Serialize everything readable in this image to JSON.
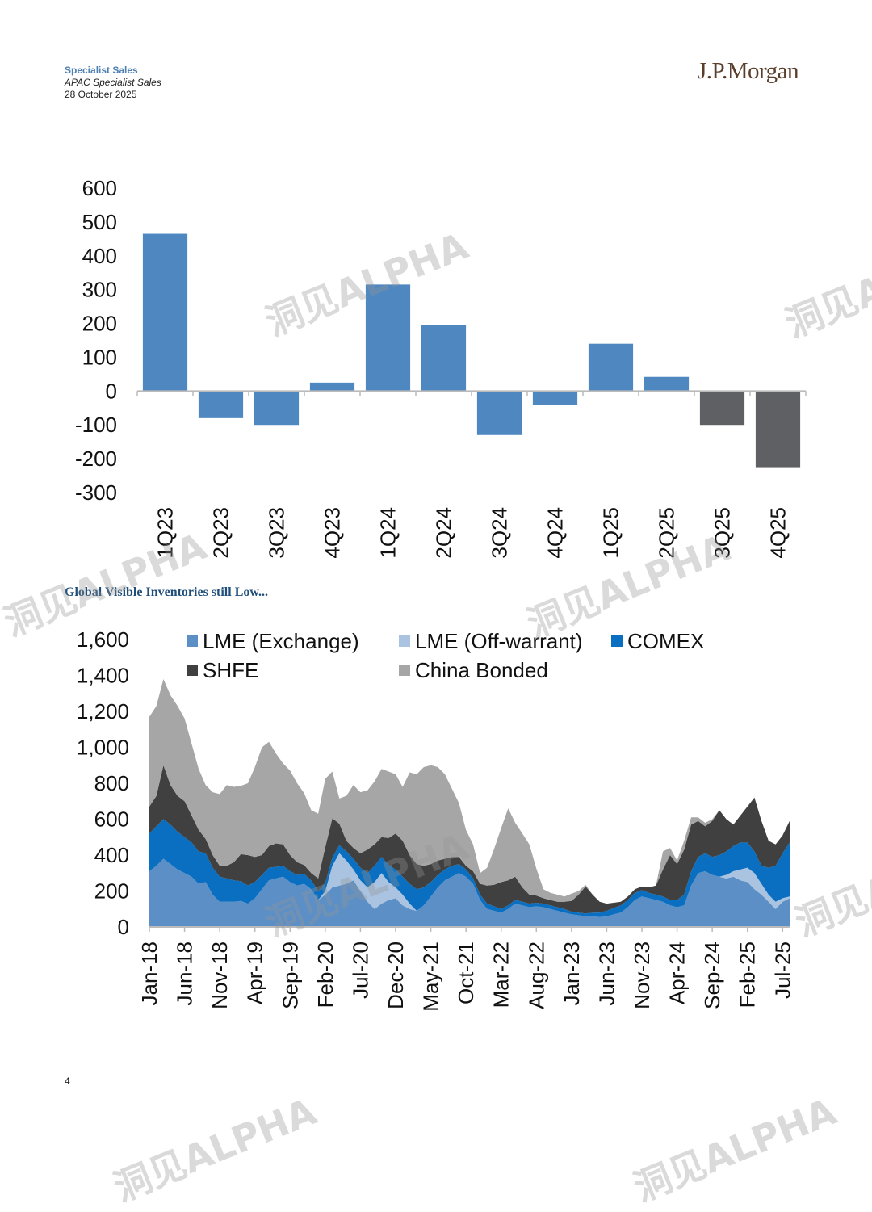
{
  "header": {
    "department": "Specialist Sales",
    "team": "APAC Specialist Sales",
    "date": "28 October 2025",
    "brand": "J.P.Morgan"
  },
  "section_title": "Global Visible Inventories still Low...",
  "page_number": "4",
  "watermark": "洞见ALPHA",
  "colors": {
    "bar_positive": "#4f88c1",
    "bar_forecast": "#5f6064",
    "lme_exchange": "#5b8fc6",
    "lme_offwarrant": "#a9c3e0",
    "comex": "#0a6fc0",
    "shfe": "#404040",
    "china_bonded": "#a6a6a6"
  },
  "chart_data": [
    {
      "type": "bar",
      "title": "",
      "xlabel": "",
      "ylabel": "",
      "categories": [
        "1Q23",
        "2Q23",
        "3Q23",
        "4Q23",
        "1Q24",
        "2Q24",
        "3Q24",
        "4Q24",
        "1Q25",
        "2Q25",
        "3Q25",
        "4Q25"
      ],
      "values": [
        465,
        -80,
        -100,
        25,
        315,
        195,
        -130,
        -40,
        140,
        42,
        -100,
        -225
      ],
      "forecast_from_index": 10,
      "ylim": [
        -300,
        600
      ],
      "yticks": [
        "600",
        "500",
        "400",
        "300",
        "200",
        "100",
        "0",
        "-100",
        "-200",
        "-300"
      ],
      "ytick_values": [
        600,
        500,
        400,
        300,
        200,
        100,
        0,
        -100,
        -200,
        -300
      ]
    },
    {
      "type": "area",
      "stacked": true,
      "title": "",
      "xlabel": "",
      "ylabel": "",
      "ylim": [
        0,
        1600
      ],
      "yticks": [
        "1,600",
        "1,400",
        "1,200",
        "1,000",
        "800",
        "600",
        "400",
        "200",
        "0"
      ],
      "ytick_values": [
        1600,
        1400,
        1200,
        1000,
        800,
        600,
        400,
        200,
        0
      ],
      "x_tick_labels": [
        "Jan-18",
        "Jun-18",
        "Nov-18",
        "Apr-19",
        "Sep-19",
        "Feb-20",
        "Jul-20",
        "Dec-20",
        "May-21",
        "Oct-21",
        "Mar-22",
        "Aug-22",
        "Jan-23",
        "Jun-23",
        "Nov-23",
        "Apr-24",
        "Sep-24",
        "Feb-25",
        "Jul-25"
      ],
      "x_tick_index": [
        0,
        5,
        10,
        15,
        20,
        25,
        30,
        35,
        40,
        45,
        50,
        55,
        60,
        65,
        70,
        75,
        80,
        85,
        90
      ],
      "legend_position": "top",
      "series": [
        {
          "name": "LME (Exchange)",
          "values": [
            310,
            340,
            380,
            350,
            320,
            300,
            280,
            240,
            250,
            180,
            140,
            140,
            140,
            145,
            130,
            160,
            210,
            260,
            270,
            280,
            250,
            230,
            240,
            210,
            150,
            180,
            220,
            230,
            240,
            260,
            200,
            140,
            100,
            130,
            150,
            160,
            120,
            100,
            90,
            120,
            170,
            220,
            260,
            280,
            300,
            280,
            240,
            150,
            100,
            90,
            80,
            100,
            130,
            120,
            110,
            115,
            110,
            100,
            90,
            80,
            70,
            65,
            60,
            60,
            55,
            60,
            70,
            80,
            110,
            150,
            170,
            160,
            150,
            140,
            120,
            110,
            120,
            230,
            300,
            310,
            290,
            280,
            270,
            280,
            260,
            250,
            210,
            180,
            140,
            100,
            140,
            160
          ]
        },
        {
          "name": "LME (Off-warrant)",
          "values": [
            0,
            0,
            0,
            0,
            0,
            0,
            0,
            0,
            0,
            0,
            0,
            0,
            0,
            0,
            0,
            0,
            0,
            0,
            0,
            0,
            0,
            0,
            0,
            0,
            0,
            20,
            120,
            180,
            130,
            60,
            60,
            80,
            150,
            170,
            100,
            60,
            60,
            30,
            0,
            0,
            0,
            0,
            0,
            0,
            0,
            0,
            0,
            0,
            0,
            0,
            0,
            0,
            0,
            0,
            0,
            0,
            0,
            0,
            0,
            0,
            0,
            0,
            0,
            0,
            0,
            0,
            0,
            0,
            0,
            0,
            0,
            0,
            0,
            0,
            0,
            0,
            0,
            0,
            0,
            0,
            0,
            0,
            20,
            30,
            60,
            80,
            90,
            60,
            40,
            40,
            20,
            10
          ]
        },
        {
          "name": "COMEX",
          "values": [
            210,
            220,
            220,
            220,
            210,
            200,
            190,
            180,
            160,
            150,
            140,
            130,
            120,
            110,
            100,
            90,
            80,
            70,
            65,
            60,
            60,
            60,
            55,
            50,
            50,
            45,
            45,
            45,
            50,
            60,
            70,
            80,
            90,
            90,
            95,
            100,
            100,
            110,
            120,
            100,
            80,
            70,
            60,
            60,
            50,
            40,
            30,
            30,
            30,
            25,
            20,
            20,
            20,
            20,
            20,
            20,
            20,
            20,
            20,
            20,
            15,
            15,
            15,
            20,
            25,
            30,
            35,
            40,
            40,
            40,
            35,
            30,
            30,
            30,
            30,
            40,
            60,
            80,
            90,
            100,
            100,
            120,
            130,
            140,
            150,
            140,
            120,
            100,
            150,
            200,
            250,
            300
          ]
        },
        {
          "name": "SHFE",
          "values": [
            150,
            170,
            300,
            220,
            200,
            200,
            150,
            120,
            80,
            70,
            60,
            70,
            100,
            150,
            170,
            140,
            110,
            120,
            130,
            120,
            90,
            70,
            50,
            40,
            70,
            200,
            220,
            120,
            60,
            60,
            80,
            130,
            120,
            110,
            150,
            200,
            200,
            160,
            140,
            120,
            100,
            80,
            60,
            50,
            40,
            20,
            40,
            60,
            100,
            120,
            150,
            140,
            130,
            80,
            50,
            40,
            30,
            30,
            30,
            40,
            60,
            100,
            150,
            100,
            60,
            40,
            30,
            20,
            20,
            20,
            20,
            30,
            50,
            150,
            250,
            200,
            250,
            260,
            200,
            150,
            200,
            250,
            180,
            120,
            150,
            200,
            300,
            250,
            150,
            120,
            100,
            120
          ]
        },
        {
          "name": "China Bonded",
          "values": [
            500,
            500,
            480,
            500,
            500,
            460,
            400,
            340,
            300,
            350,
            400,
            450,
            420,
            380,
            400,
            500,
            600,
            580,
            500,
            450,
            470,
            440,
            400,
            350,
            360,
            380,
            260,
            140,
            250,
            350,
            340,
            330,
            350,
            380,
            370,
            330,
            300,
            460,
            500,
            550,
            550,
            520,
            470,
            380,
            300,
            200,
            150,
            60,
            100,
            200,
            300,
            400,
            300,
            300,
            280,
            150,
            50,
            40,
            40,
            30,
            40,
            20,
            10,
            0,
            0,
            0,
            0,
            0,
            0,
            0,
            0,
            0,
            0,
            100,
            40,
            20,
            50,
            40,
            20,
            20,
            10,
            0,
            0,
            0,
            0,
            0,
            0,
            0,
            0,
            0,
            0,
            0
          ]
        }
      ]
    }
  ]
}
